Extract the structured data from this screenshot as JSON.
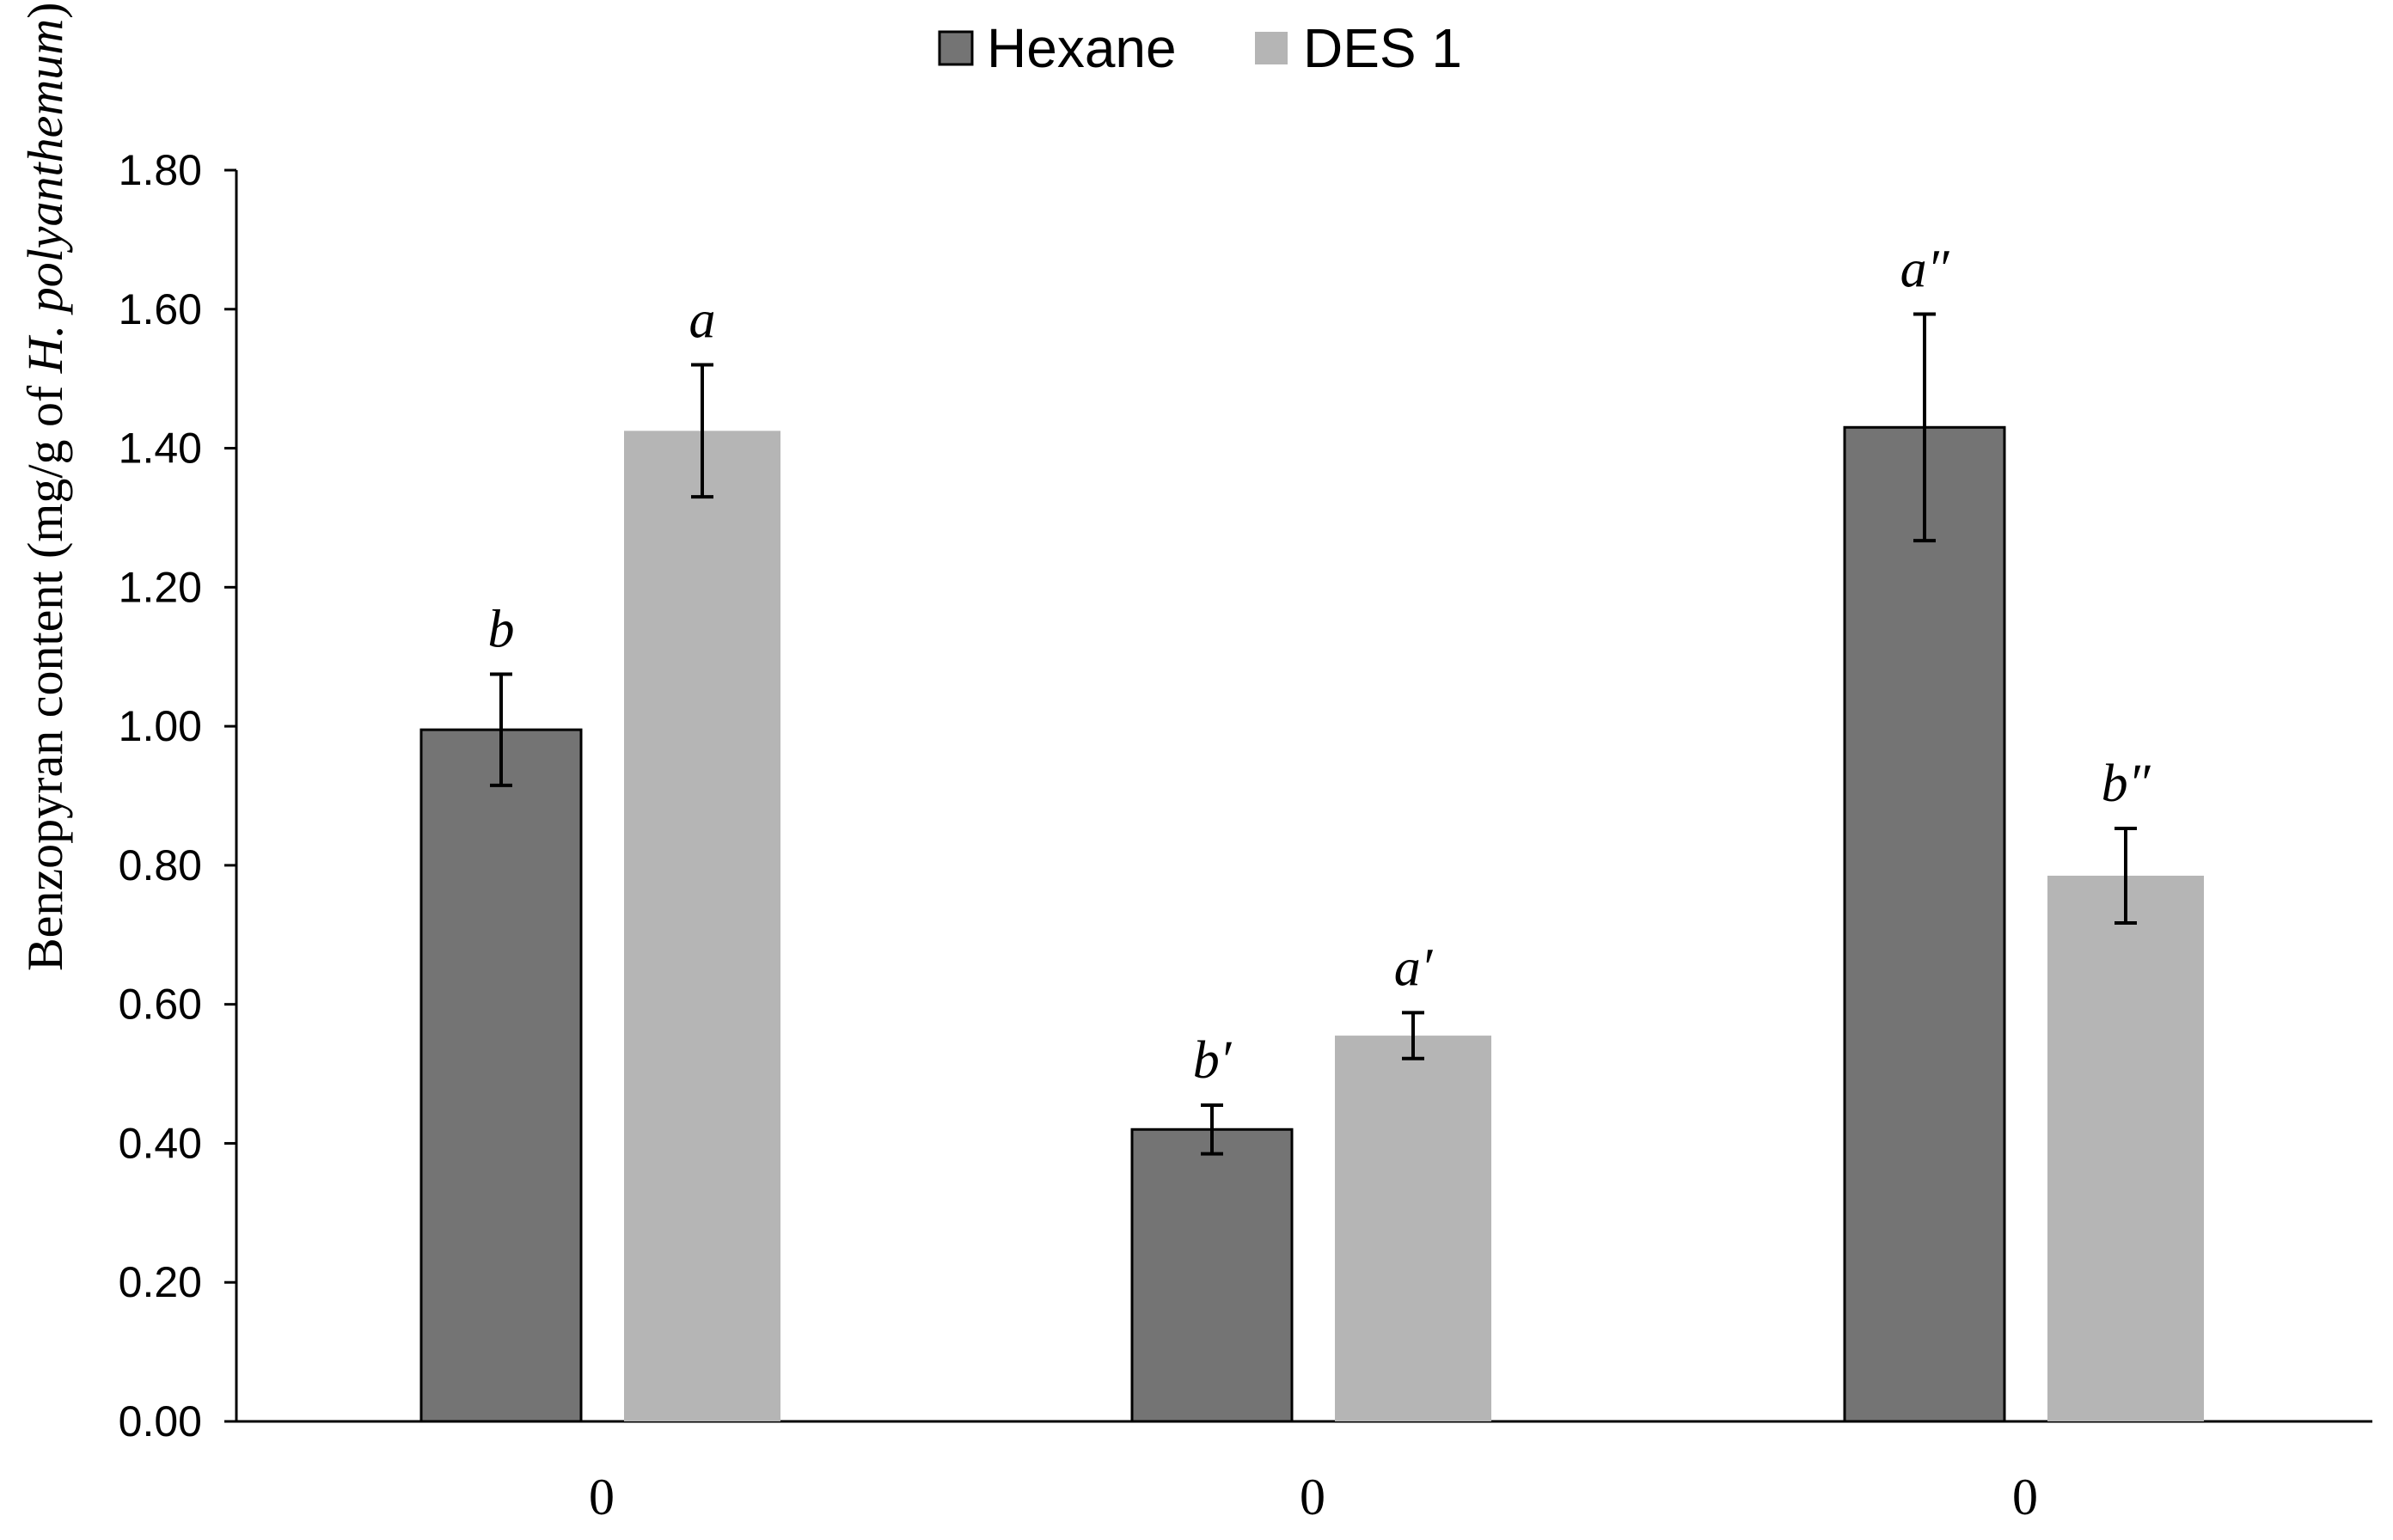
{
  "chart_data": {
    "type": "bar",
    "title": "",
    "xlabel": "",
    "ylabel_prefix": "Benzopyran content (mg/g of ",
    "ylabel_italic": "H. polyanthemum",
    "ylabel_suffix": ")",
    "ylim": [
      0,
      1.8
    ],
    "yticks": [
      "0.00",
      "0.20",
      "0.40",
      "0.60",
      "0.80",
      "1.00",
      "1.20",
      "1.40",
      "1.60",
      "1.80"
    ],
    "categories": [
      "0",
      "0",
      "0"
    ],
    "legend_position": "top-center",
    "series": [
      {
        "name": "Hexane",
        "color": "#747474",
        "values": [
          0.995,
          0.42,
          1.43
        ],
        "errors": [
          0.08,
          0.035,
          0.163
        ],
        "labels": [
          "b",
          "b′",
          "a″"
        ]
      },
      {
        "name": "DES 1",
        "color": "#b5b5b5",
        "values": [
          1.425,
          0.555,
          0.785
        ],
        "errors": [
          0.095,
          0.033,
          0.068
        ],
        "labels": [
          "a",
          "a′",
          "b″"
        ]
      }
    ]
  }
}
